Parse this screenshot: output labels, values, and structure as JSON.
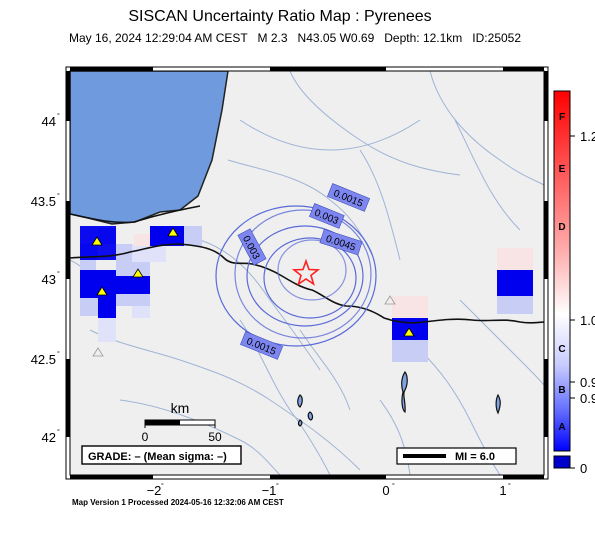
{
  "title": "SISCAN Uncertainty Ratio Map : Pyrenees",
  "subtitle": "May 16, 2024 12:29:04 AM CEST   M 2.3   N43.05 W0.69   Depth: 12.1km   ID:25052",
  "footer": "Map Version 1 Processed 2024-05-16 12:32:06 AM CEST",
  "axes": {
    "lat_ticks": [
      "44",
      "43.5",
      "43",
      "42.5",
      "42"
    ],
    "lon_ticks": [
      "−2",
      "−1",
      "0",
      "1"
    ]
  },
  "scale_bar": {
    "unit": "km",
    "start": "0",
    "end": "50"
  },
  "grade_box": "GRADE: – (Mean sigma: –)",
  "mi_legend": "MI = 6.0",
  "contours": [
    {
      "label": "0.0015"
    },
    {
      "label": "0.003"
    },
    {
      "label": "0.0045"
    },
    {
      "label": "0.003"
    },
    {
      "label": "0.0015"
    }
  ],
  "colorbar": {
    "letters": [
      "F",
      "E",
      "D",
      "C",
      "B",
      "A"
    ],
    "values": [
      "1.2",
      "1.0",
      "0.9",
      "0.9",
      "0"
    ],
    "colors": {
      "top": "#ff0000",
      "mid": "#ffffff",
      "low": "#0000ff",
      "bottom": "#0000cc"
    }
  },
  "colors": {
    "land": "#efefef",
    "sea": "#6f9bde",
    "river": "#9fb4d6",
    "contour": "#5a6ad8",
    "epicenter": "#ff2222",
    "station": "#ffff00",
    "strong_blue": "#0000ee",
    "mid_blue": "#7d86f0",
    "light_blue": "#c8cdf6",
    "pale_red": "#f8e4e4"
  },
  "icons": [
    "epicenter-star-icon",
    "station-triangle-icon"
  ]
}
